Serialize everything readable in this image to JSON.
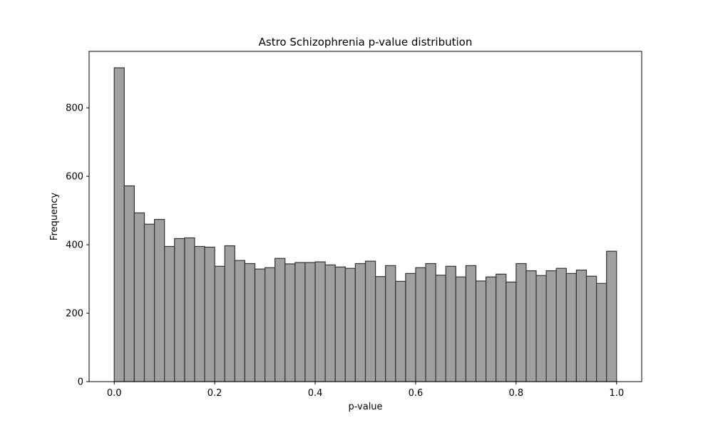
{
  "chart_data": {
    "type": "bar",
    "title": "Astro Schizophrenia p-value distribution",
    "xlabel": "p-value",
    "ylabel": "Frequency",
    "bin_start": 0.0,
    "bin_end": 1.0,
    "bin_count": 50,
    "xlim": [
      -0.05,
      1.05
    ],
    "ylim": [
      0,
      965
    ],
    "x_ticks": [
      0.0,
      0.2,
      0.4,
      0.6,
      0.8,
      1.0
    ],
    "x_tick_labels": [
      "0.0",
      "0.2",
      "0.4",
      "0.6",
      "0.8",
      "1.0"
    ],
    "y_ticks": [
      0,
      200,
      400,
      600,
      800
    ],
    "y_tick_labels": [
      "0",
      "200",
      "400",
      "600",
      "800"
    ],
    "values": [
      917,
      572,
      493,
      460,
      474,
      395,
      418,
      420,
      395,
      393,
      337,
      397,
      354,
      345,
      329,
      333,
      360,
      344,
      348,
      348,
      350,
      341,
      335,
      331,
      345,
      352,
      307,
      339,
      293,
      316,
      333,
      345,
      311,
      337,
      306,
      339,
      294,
      306,
      314,
      291,
      345,
      324,
      310,
      324,
      331,
      316,
      326,
      308,
      287,
      381
    ],
    "bar_color": "#a0a0a0",
    "edge_color": "#333333",
    "grid": false
  }
}
